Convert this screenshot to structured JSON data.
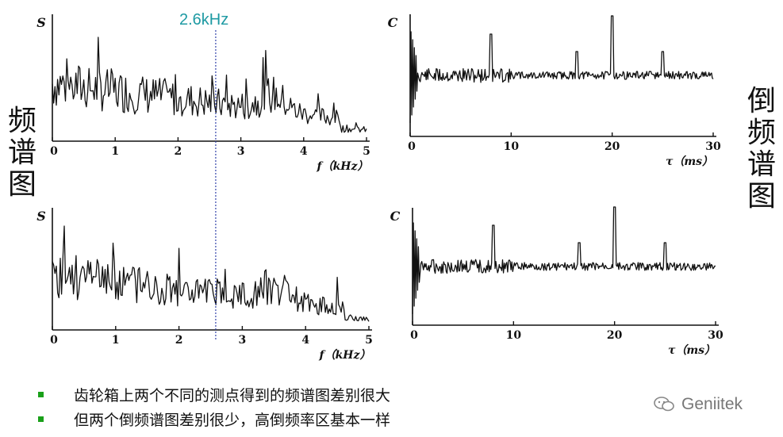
{
  "marker": {
    "label": "2.6kHz"
  },
  "side_labels": {
    "left": [
      "频",
      "谱",
      "图"
    ],
    "right": [
      "倒",
      "频",
      "谱",
      "图"
    ]
  },
  "charts": {
    "spectrum": {
      "ylabel": "S",
      "xlabel": "f（kHz）",
      "ticks": [
        "0",
        "1",
        "2",
        "3",
        "4",
        "5"
      ],
      "xlim": [
        0,
        5
      ]
    },
    "cepstrum": {
      "ylabel": "C",
      "xlabel": "τ（ms）",
      "ticks": [
        "0",
        "10",
        "20",
        "30"
      ],
      "xlim": [
        0,
        30
      ]
    }
  },
  "bullets": [
    "齿轮箱上两个不同的测点得到的频谱图差别很大",
    "但两个倒频谱图差别很少，高倒频率区基本一样"
  ],
  "watermark": {
    "text": "Geniitek"
  },
  "colors": {
    "marker": "#1e9aa3",
    "bullet": "#1aa01a",
    "ink": "#111111",
    "watermark": "#777777"
  },
  "chart_data": [
    {
      "type": "line",
      "title": "",
      "ylabel": "S",
      "xlabel": "f（kHz）",
      "xlim": [
        0,
        5
      ],
      "spectral_marker_khz": 2.6
    },
    {
      "type": "line",
      "title": "",
      "ylabel": "C",
      "xlabel": "τ（ms）",
      "xlim": [
        0,
        30
      ],
      "peaks_ms": [
        8,
        16.5,
        20,
        25
      ]
    },
    {
      "type": "line",
      "title": "",
      "ylabel": "S",
      "xlabel": "f（kHz）",
      "xlim": [
        0,
        5
      ],
      "spectral_marker_khz": 2.6
    },
    {
      "type": "line",
      "title": "",
      "ylabel": "C",
      "xlabel": "τ（ms）",
      "xlim": [
        0,
        30
      ],
      "peaks_ms": [
        8,
        16.5,
        20,
        25
      ]
    }
  ]
}
